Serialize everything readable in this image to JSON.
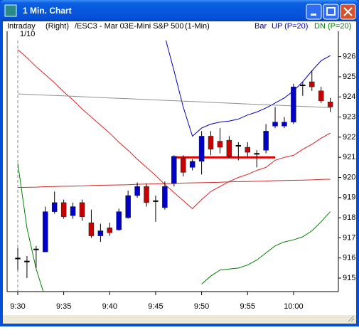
{
  "window": {
    "title": "1 Min. Chart"
  },
  "header": {
    "items": [
      "Intraday",
      "(Right)",
      "/ESC3 - Mar 03",
      "E-Mini S&P 500",
      "(1-Min)"
    ],
    "mode": "Bar"
  },
  "chart_data": {
    "type": "candlestick",
    "date_label": "1/10",
    "categories": [
      "9:30",
      null,
      null,
      null,
      null,
      "9:35",
      null,
      null,
      null,
      null,
      "9:40",
      null,
      null,
      null,
      null,
      "9:45",
      null,
      null,
      null,
      null,
      "9:50",
      null,
      null,
      null,
      null,
      "9:55",
      null,
      null,
      null,
      null,
      "10:00",
      null,
      null,
      null,
      null
    ],
    "open": [
      916.0,
      915.85,
      916.45,
      916.3,
      918.3,
      918.75,
      918.1,
      918.75,
      917.75,
      917.1,
      917.5,
      917.4,
      918.0,
      919.1,
      919.55,
      918.85,
      918.5,
      919.7,
      920.95,
      920.5,
      920.8,
      922.05,
      921.8,
      921.85,
      921.6,
      921.5,
      921.2,
      921.35,
      922.55,
      922.55,
      922.75,
      924.6,
      924.75,
      924.3,
      923.75
    ],
    "high": [
      916.5,
      916.1,
      916.6,
      918.55,
      919.3,
      918.9,
      918.75,
      918.9,
      918.4,
      917.7,
      917.75,
      918.45,
      919.35,
      919.75,
      919.7,
      919.1,
      919.8,
      921.1,
      921.1,
      920.9,
      922.3,
      922.3,
      922.45,
      922.05,
      921.75,
      921.75,
      921.35,
      922.65,
      923.5,
      923.0,
      924.65,
      924.75,
      925.3,
      924.5,
      923.95
    ],
    "low": [
      915.4,
      915.0,
      915.5,
      916.3,
      918.2,
      917.95,
      917.95,
      917.85,
      917.0,
      916.8,
      917.1,
      917.35,
      917.95,
      919.0,
      918.55,
      917.8,
      918.4,
      919.55,
      920.05,
      920.35,
      920.15,
      921.1,
      921.2,
      920.95,
      920.85,
      921.05,
      920.5,
      921.2,
      922.45,
      922.45,
      922.65,
      924.05,
      924.3,
      923.7,
      923.25
    ],
    "close": [
      916.0,
      915.85,
      916.45,
      918.3,
      918.75,
      918.05,
      918.55,
      918.05,
      917.1,
      917.35,
      917.25,
      918.3,
      919.1,
      919.55,
      918.75,
      918.85,
      919.55,
      921.05,
      920.25,
      920.8,
      922.05,
      921.4,
      921.5,
      921.05,
      921.6,
      921.25,
      921.2,
      922.3,
      922.75,
      922.75,
      924.5,
      924.6,
      924.5,
      923.8,
      923.5
    ],
    "up_color": "#0000c8",
    "down_color": "#c80000",
    "flat_color": "#000000",
    "series": [
      {
        "name": "UP (P=20)",
        "color": "#0000c0",
        "values": [
          null,
          null,
          null,
          null,
          null,
          null,
          null,
          null,
          null,
          null,
          null,
          null,
          null,
          null,
          null,
          null,
          927.0,
          925.3,
          923.5,
          922.05,
          922.45,
          922.65,
          922.75,
          922.8,
          922.9,
          923.1,
          923.25,
          923.45,
          923.7,
          923.95,
          924.3,
          924.75,
          925.3,
          925.8,
          926.05
        ]
      },
      {
        "name": "DN (P=20)",
        "color": "#008000",
        "values": [
          920.7,
          917.5,
          915.45,
          914.0,
          null,
          null,
          null,
          null,
          null,
          null,
          null,
          null,
          null,
          null,
          null,
          null,
          null,
          null,
          null,
          null,
          914.7,
          915.1,
          915.4,
          915.45,
          915.5,
          915.65,
          915.9,
          916.25,
          916.6,
          916.8,
          916.9,
          917.05,
          917.35,
          917.8,
          918.3
        ]
      },
      {
        "color": "#e02020",
        "values": [
          926.35,
          925.95,
          925.5,
          925.1,
          924.7,
          924.25,
          923.85,
          923.4,
          923.0,
          922.6,
          922.2,
          921.75,
          921.35,
          920.9,
          920.5,
          920.1,
          919.65,
          919.25,
          918.85,
          918.45,
          918.9,
          919.3,
          919.55,
          919.8,
          920.0,
          920.15,
          920.35,
          920.5,
          920.85,
          921.0,
          921.1,
          921.4,
          921.65,
          921.95,
          922.2
        ]
      },
      {
        "color": "#909090",
        "values": [
          924.15,
          924.13,
          924.11,
          924.09,
          924.07,
          924.05,
          924.03,
          924.01,
          923.99,
          923.97,
          923.95,
          923.93,
          923.91,
          923.89,
          923.87,
          923.85,
          923.83,
          923.81,
          923.79,
          923.77,
          923.75,
          923.73,
          923.71,
          923.69,
          923.67,
          923.65,
          923.63,
          923.61,
          923.59,
          923.57,
          923.55,
          923.53,
          923.51,
          923.49,
          923.47
        ]
      },
      {
        "color": "#d02828",
        "values": [
          919.5,
          919.51,
          919.52,
          919.54,
          919.55,
          919.56,
          919.57,
          919.58,
          919.6,
          919.61,
          919.62,
          919.63,
          919.64,
          919.66,
          919.67,
          919.68,
          919.69,
          919.7,
          919.72,
          919.73,
          919.74,
          919.75,
          919.76,
          919.78,
          919.79,
          919.8,
          919.81,
          919.82,
          919.84,
          919.85,
          919.86,
          919.87,
          919.88,
          919.9,
          919.91
        ]
      },
      {
        "color": "#e00000",
        "width": 3,
        "values": [
          null,
          null,
          null,
          null,
          null,
          null,
          null,
          null,
          null,
          null,
          null,
          null,
          null,
          null,
          null,
          null,
          null,
          921,
          921,
          921,
          921,
          921,
          921,
          921,
          921,
          921,
          921,
          921,
          921,
          null,
          null,
          null,
          null,
          null,
          null
        ]
      }
    ],
    "ylim": [
      914.33,
      926.8
    ],
    "yticks": [
      915,
      916,
      917,
      918,
      919,
      920,
      921,
      922,
      923,
      924,
      925,
      926
    ]
  }
}
